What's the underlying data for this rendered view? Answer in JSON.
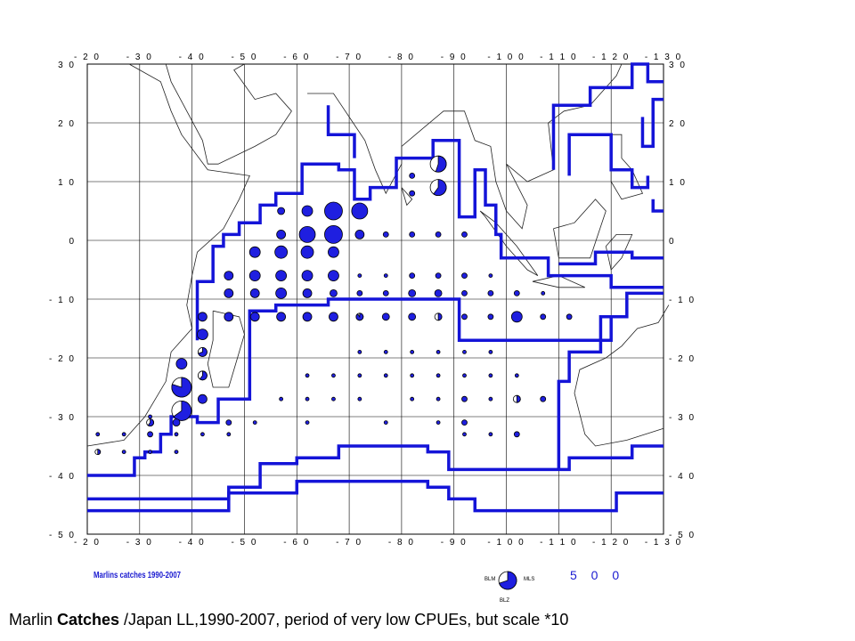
{
  "map": {
    "lon_ticks": [
      "- 2 0",
      "- 3 0",
      "- 4 0",
      "- 5 0",
      "- 6 0",
      "- 7 0",
      "- 8 0",
      "- 9 0",
      "- 1 0 0",
      "- 1 1 0",
      "- 1 2 0",
      "- 1 3 0"
    ],
    "lat_ticks": [
      "3 0",
      "2 0",
      "1 0",
      "0",
      "- 1 0",
      "- 2 0",
      "- 3 0",
      "- 4 0",
      "- 5 0"
    ],
    "lon_range": [
      20,
      130
    ],
    "lat_range": [
      -50,
      30
    ],
    "colors": {
      "catch": "#1f1fe0",
      "outline": "#000000",
      "boundary": "#1414d8"
    },
    "legend": {
      "title": "Marlins catches 1990-2007",
      "scale_value": "5 0 0",
      "species": {
        "blm": "BLM",
        "mls": "MLS",
        "blz": "BLZ"
      }
    }
  },
  "caption": {
    "prefix": "Marlin ",
    "bold": "Catches",
    "suffix": " /Japan LL,1990-2007, period of very low CPUEs, but scale *10"
  }
}
